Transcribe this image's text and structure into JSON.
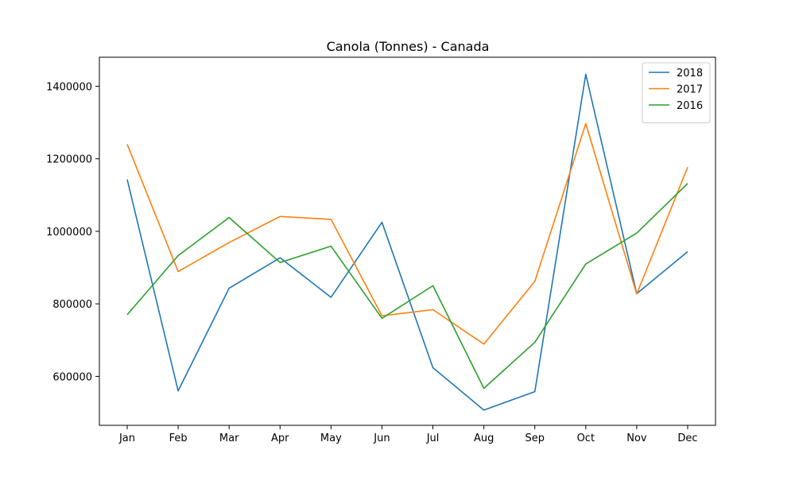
{
  "chart_data": {
    "type": "line",
    "title": "Canola (Tonnes) - Canada",
    "xlabel": "",
    "ylabel": "",
    "categories": [
      "Jan",
      "Feb",
      "Mar",
      "Apr",
      "May",
      "Jun",
      "Jul",
      "Aug",
      "Sep",
      "Oct",
      "Nov",
      "Dec"
    ],
    "yticks": [
      600000,
      800000,
      1000000,
      1200000,
      1400000
    ],
    "ylim": [
      465000,
      1480000
    ],
    "grid": false,
    "legend": "top-right",
    "series": [
      {
        "name": "2018",
        "color": "#1f77b4",
        "values": [
          1143000,
          560000,
          843000,
          927000,
          818000,
          1025000,
          624000,
          507000,
          558000,
          1433000,
          828000,
          944000
        ]
      },
      {
        "name": "2017",
        "color": "#ff7f0e",
        "values": [
          1240000,
          889000,
          969000,
          1041000,
          1033000,
          767000,
          784000,
          689000,
          862000,
          1297000,
          827000,
          1177000
        ]
      },
      {
        "name": "2016",
        "color": "#2ca02c",
        "values": [
          770000,
          933000,
          1038000,
          914000,
          959000,
          760000,
          850000,
          567000,
          694000,
          910000,
          995000,
          1132000
        ]
      }
    ]
  }
}
